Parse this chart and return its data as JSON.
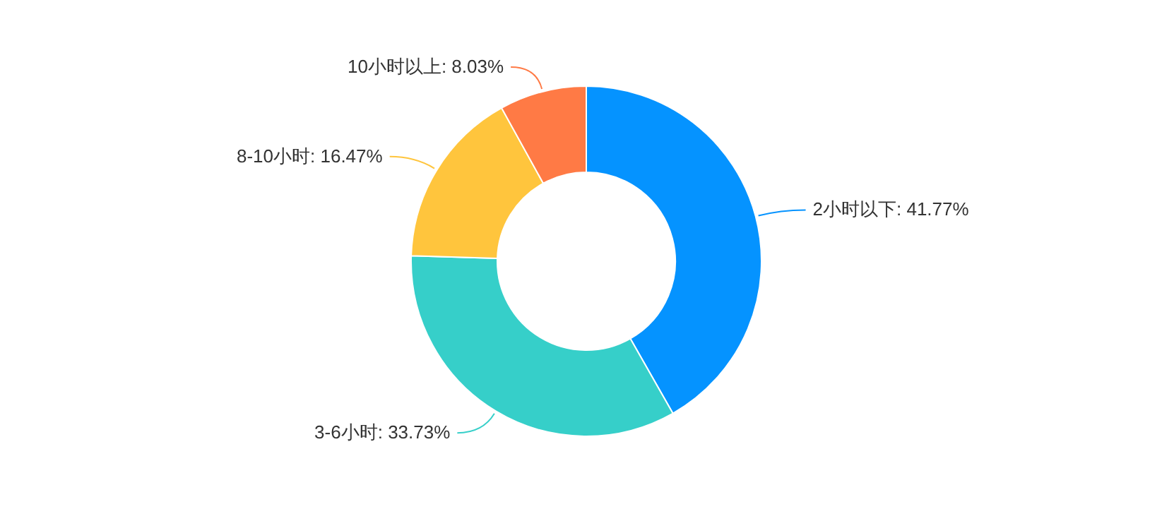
{
  "chart_data": {
    "type": "donut",
    "categories": [
      "2小时以下",
      "3-6小时",
      "8-10小时",
      "10小时以上"
    ],
    "values": [
      41.77,
      33.73,
      16.47,
      8.03
    ],
    "colors": [
      "#0593ff",
      "#36cfc9",
      "#ffc53d",
      "#ff7a45"
    ],
    "value_labels": [
      ": 41.77%",
      ": 33.73%",
      ": 16.47%",
      ": 8.03%"
    ]
  }
}
